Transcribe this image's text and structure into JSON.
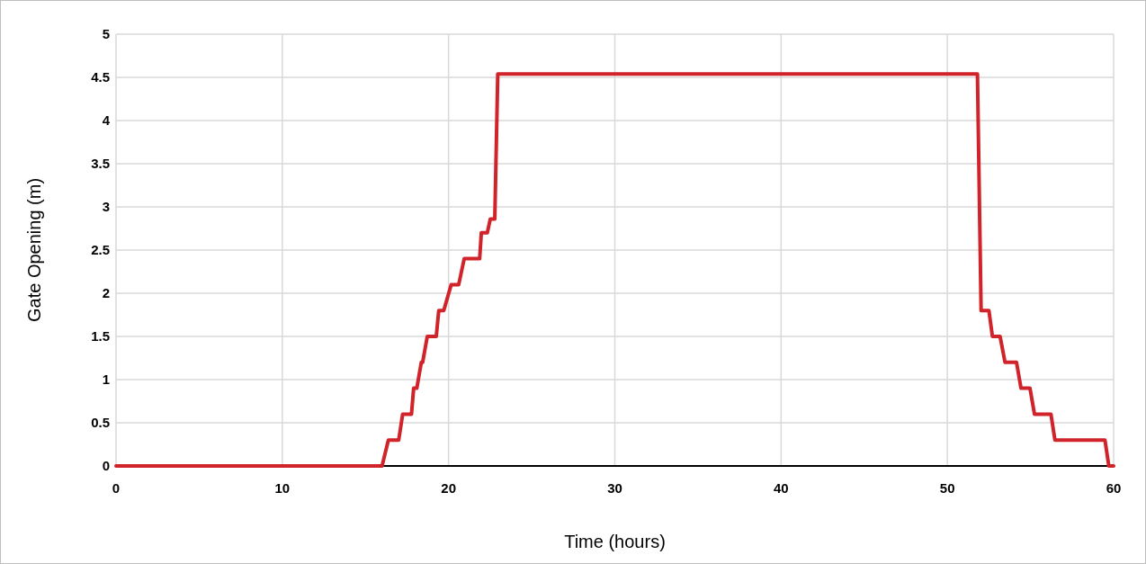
{
  "chart_data": {
    "type": "line",
    "xlabel": "Time (hours)",
    "ylabel": "Gate Opening (m)",
    "xlim": [
      0,
      60
    ],
    "ylim": [
      0,
      5
    ],
    "xticks": [
      0,
      10,
      20,
      30,
      40,
      50,
      60
    ],
    "yticks": [
      0,
      0.5,
      1,
      1.5,
      2,
      2.5,
      3,
      3.5,
      4,
      4.5,
      5
    ],
    "grid": true,
    "series": [
      {
        "color": "#d0232a",
        "x": [
          0,
          16.0,
          16.38,
          17.0,
          17.24,
          17.77,
          17.9,
          18.09,
          18.36,
          18.44,
          18.72,
          19.26,
          19.41,
          19.71,
          20.16,
          20.61,
          20.94,
          21.87,
          21.97,
          22.33,
          22.51,
          22.78,
          22.96,
          51.81,
          52.03,
          52.5,
          52.71,
          53.17,
          53.47,
          54.16,
          54.43,
          54.97,
          55.24,
          56.23,
          56.47,
          59.48,
          59.71,
          60
        ],
        "values": [
          0,
          0,
          0.3,
          0.3,
          0.6,
          0.6,
          0.9,
          0.9,
          1.2,
          1.2,
          1.5,
          1.5,
          1.8,
          1.8,
          2.1,
          2.1,
          2.4,
          2.4,
          2.7,
          2.7,
          2.86,
          2.86,
          4.54,
          4.54,
          1.8,
          1.8,
          1.5,
          1.5,
          1.2,
          1.2,
          0.9,
          0.9,
          0.6,
          0.6,
          0.3,
          0.3,
          0,
          0
        ]
      }
    ]
  }
}
